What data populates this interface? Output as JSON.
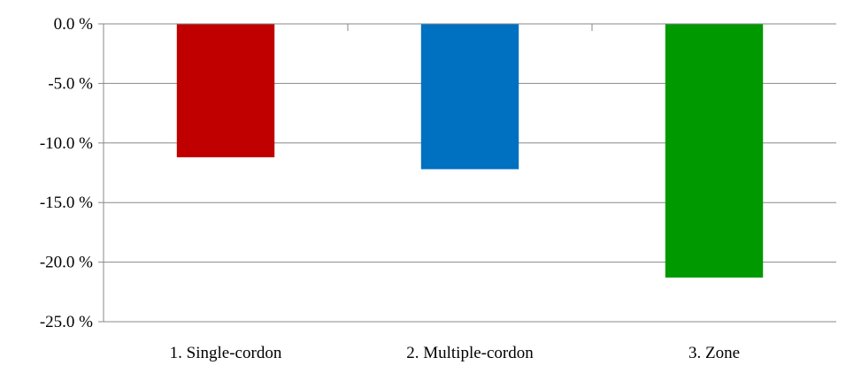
{
  "chart_data": {
    "type": "bar",
    "categories": [
      "1. Single-cordon",
      "2. Multiple-cordon",
      "3. Zone"
    ],
    "values": [
      -11.2,
      -12.2,
      -21.3
    ],
    "colors": [
      "#c00000",
      "#0070c0",
      "#009900"
    ],
    "ylim": [
      -25.0,
      0.0
    ],
    "yticks": [
      0.0,
      -5.0,
      -10.0,
      -15.0,
      -20.0,
      -25.0
    ],
    "ytick_labels": [
      "0.0 %",
      "-5.0 %",
      "-10.0 %",
      "-15.0 %",
      "-20.0 %",
      "-25.0 %"
    ],
    "grid": true,
    "legend": "none",
    "title": "",
    "xlabel": "",
    "ylabel": ""
  }
}
